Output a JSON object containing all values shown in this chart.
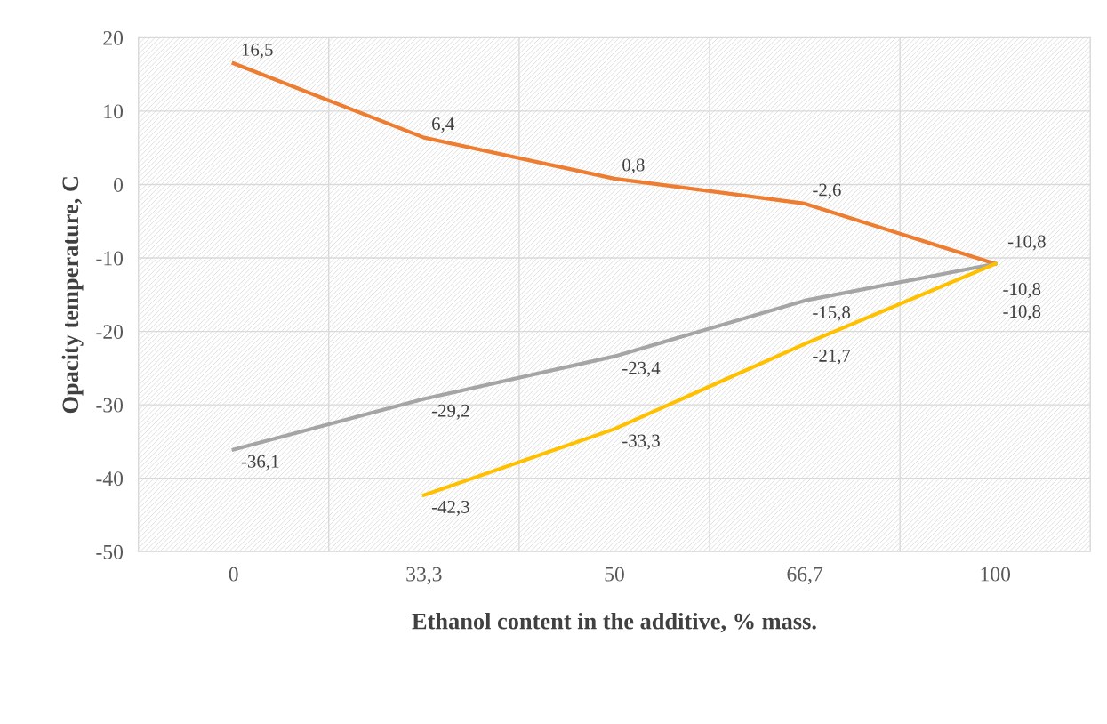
{
  "chart_data": {
    "type": "line",
    "xlabel": "Ethanol content in the additive, % mass.",
    "ylabel": "Opacity temperature, C",
    "categories": [
      "0",
      "33,3",
      "50",
      "66,7",
      "100"
    ],
    "series": [
      {
        "color": "#ed7d31",
        "values": [
          16.5,
          6.4,
          0.8,
          -2.6,
          -10.8
        ],
        "value_labels": [
          "16,5",
          "6,4",
          "0,8",
          "-2,6",
          "-10,8"
        ]
      },
      {
        "color": "#a5a5a5",
        "values": [
          -36.1,
          -29.2,
          -23.4,
          -15.8,
          -10.8
        ],
        "value_labels": [
          "-36,1",
          "-29,2",
          "-23,4",
          "-15,8",
          "-10,8"
        ]
      },
      {
        "color": "#ffc000",
        "values": [
          null,
          -42.3,
          -33.3,
          -21.7,
          -10.8
        ],
        "value_labels": [
          null,
          "-42,3",
          "-33,3",
          "-21,7",
          "-10,8"
        ]
      }
    ],
    "ylim": [
      -50,
      20
    ],
    "yticks": [
      -50,
      -40,
      -30,
      -20,
      -10,
      0,
      10,
      20
    ],
    "grid": true,
    "marker": "none",
    "line_style": "solid"
  }
}
